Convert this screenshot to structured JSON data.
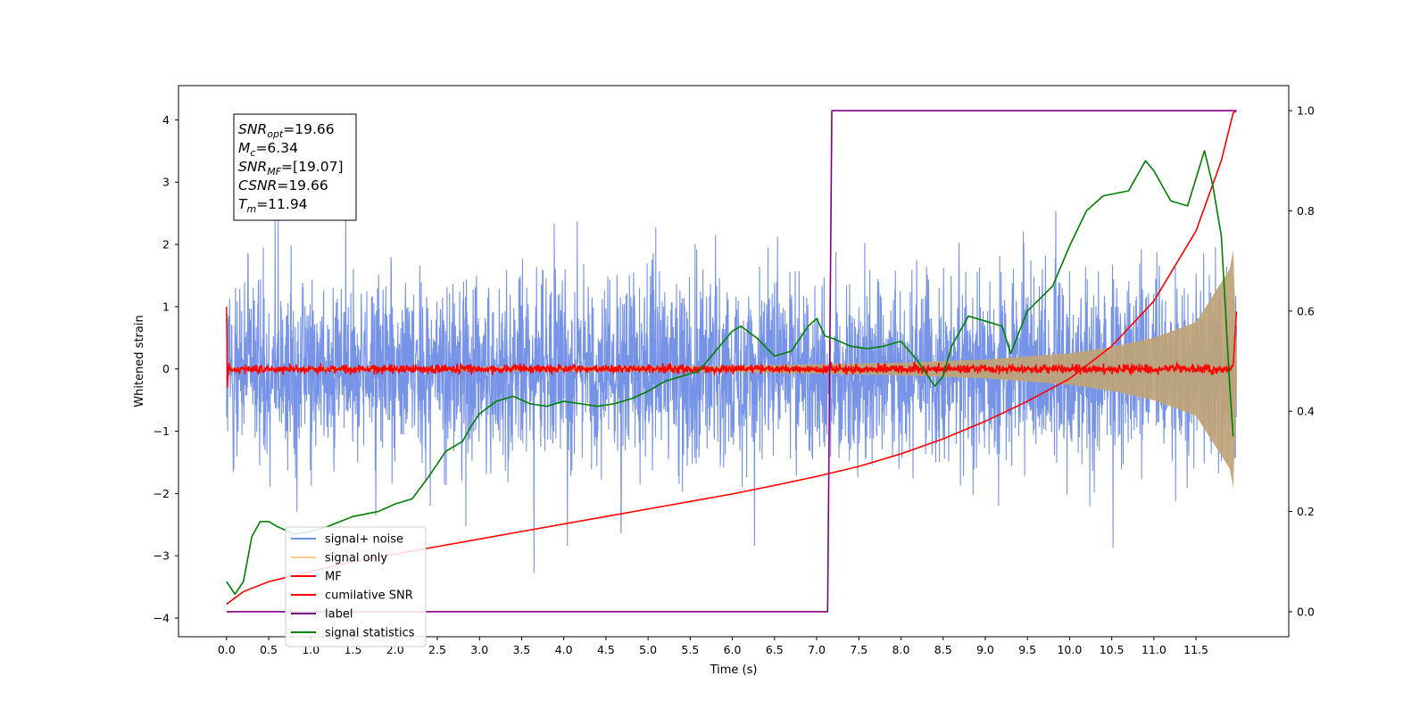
{
  "chart_data": {
    "type": "line",
    "xlabel": "Time (s)",
    "ylabel": "Whitened strain",
    "xlim": [
      -0.57,
      12.6
    ],
    "ylim_left": [
      -4.3,
      4.55
    ],
    "ylim_right": [
      -0.05,
      1.05
    ],
    "x_ticks": [
      0.0,
      0.5,
      1.0,
      1.5,
      2.0,
      2.5,
      3.0,
      3.5,
      4.0,
      4.5,
      5.0,
      5.5,
      6.0,
      6.5,
      7.0,
      7.5,
      8.0,
      8.5,
      9.0,
      9.5,
      10.0,
      10.5,
      11.0,
      11.5
    ],
    "x_tick_labels": [
      "0.0",
      "0.5",
      "1.0",
      "1.5",
      "2.0",
      "2.5",
      "3.0",
      "3.5",
      "4.0",
      "4.5",
      "5.0",
      "5.5",
      "6.0",
      "6.5",
      "7.0",
      "7.5",
      "8.0",
      "8.5",
      "9.0",
      "9.5",
      "10.0",
      "10.5",
      "11.0",
      "11.5"
    ],
    "y_ticks_left": [
      -4,
      -3,
      -2,
      -1,
      0,
      1,
      2,
      3,
      4
    ],
    "y_tick_labels_left": [
      "−4",
      "−3",
      "−2",
      "−1",
      "0",
      "1",
      "2",
      "3",
      "4"
    ],
    "y_ticks_right": [
      0.0,
      0.2,
      0.4,
      0.6,
      0.8,
      1.0
    ],
    "y_tick_labels_right": [
      "0.0",
      "0.2",
      "0.4",
      "0.6",
      "0.8",
      "1.0"
    ],
    "grid": false,
    "legend_placement": "lower-left",
    "annotation": {
      "lines": [
        {
          "sym": "SNR",
          "sub": "opt",
          "val": "=19.66"
        },
        {
          "sym": "M",
          "sub": "c",
          "val": "=6.34"
        },
        {
          "sym": "SNR",
          "sub": "MF",
          "val": "=[19.07]"
        },
        {
          "sym": "CSNR",
          "sub": "",
          "val": "=19.66"
        },
        {
          "sym": "T",
          "sub": "m",
          "val": "=11.94"
        }
      ]
    },
    "series": [
      {
        "name": "signal+ noise",
        "axis": "left",
        "color": "#6f8de6",
        "description_kind": "noise",
        "t_start": 0.0,
        "t_end": 11.98,
        "typical_upper": 1.0,
        "typical_lower": -1.0,
        "max": 4.18,
        "min": -3.28
      },
      {
        "name": "signal only",
        "axis": "left",
        "color": "#f5c66a",
        "description_kind": "chirp",
        "t_start": 0.0,
        "t_end": 11.98,
        "envelope": [
          [
            0.0,
            0.02
          ],
          [
            6.0,
            0.05
          ],
          [
            8.0,
            0.1
          ],
          [
            9.0,
            0.15
          ],
          [
            10.0,
            0.25
          ],
          [
            10.5,
            0.35
          ],
          [
            11.0,
            0.5
          ],
          [
            11.5,
            0.75
          ],
          [
            11.9,
            1.6
          ],
          [
            11.94,
            1.9
          ],
          [
            11.98,
            0.3
          ]
        ]
      },
      {
        "name": "MF",
        "axis": "left",
        "color": "#ff0000",
        "description_kind": "mf",
        "t_start": 0.0,
        "t_end": 11.98,
        "start_values": [
          1.0,
          -0.3
        ],
        "end_value": 0.92
      },
      {
        "name": "cumilative SNR",
        "axis": "right",
        "color": "#ff0000",
        "points": [
          [
            0.0,
            0.015
          ],
          [
            0.2,
            0.04
          ],
          [
            0.5,
            0.06
          ],
          [
            1.0,
            0.08
          ],
          [
            1.5,
            0.1
          ],
          [
            2.0,
            0.115
          ],
          [
            2.5,
            0.13
          ],
          [
            3.0,
            0.145
          ],
          [
            3.5,
            0.16
          ],
          [
            4.0,
            0.175
          ],
          [
            4.5,
            0.19
          ],
          [
            5.0,
            0.205
          ],
          [
            5.5,
            0.22
          ],
          [
            6.0,
            0.235
          ],
          [
            6.5,
            0.252
          ],
          [
            7.0,
            0.27
          ],
          [
            7.5,
            0.29
          ],
          [
            8.0,
            0.315
          ],
          [
            8.5,
            0.345
          ],
          [
            9.0,
            0.38
          ],
          [
            9.5,
            0.42
          ],
          [
            10.0,
            0.465
          ],
          [
            10.5,
            0.53
          ],
          [
            11.0,
            0.62
          ],
          [
            11.5,
            0.76
          ],
          [
            11.8,
            0.9
          ],
          [
            11.94,
            0.995
          ],
          [
            11.98,
            1.0
          ]
        ]
      },
      {
        "name": "label",
        "axis": "right",
        "color": "#800080",
        "points": [
          [
            0.0,
            0.0
          ],
          [
            7.13,
            0.0
          ],
          [
            7.18,
            1.0
          ],
          [
            11.98,
            1.0
          ]
        ]
      },
      {
        "name": "signal statistics",
        "axis": "right",
        "color": "#008000",
        "points": [
          [
            0.0,
            0.06
          ],
          [
            0.1,
            0.035
          ],
          [
            0.2,
            0.06
          ],
          [
            0.3,
            0.15
          ],
          [
            0.4,
            0.18
          ],
          [
            0.5,
            0.18
          ],
          [
            0.6,
            0.17
          ],
          [
            0.8,
            0.155
          ],
          [
            1.0,
            0.16
          ],
          [
            1.2,
            0.17
          ],
          [
            1.5,
            0.19
          ],
          [
            1.8,
            0.2
          ],
          [
            2.0,
            0.215
          ],
          [
            2.2,
            0.225
          ],
          [
            2.4,
            0.27
          ],
          [
            2.6,
            0.32
          ],
          [
            2.8,
            0.34
          ],
          [
            2.9,
            0.37
          ],
          [
            3.0,
            0.395
          ],
          [
            3.2,
            0.42
          ],
          [
            3.4,
            0.43
          ],
          [
            3.6,
            0.415
          ],
          [
            3.8,
            0.41
          ],
          [
            4.0,
            0.42
          ],
          [
            4.2,
            0.415
          ],
          [
            4.4,
            0.41
          ],
          [
            4.6,
            0.415
          ],
          [
            4.8,
            0.425
          ],
          [
            5.0,
            0.44
          ],
          [
            5.2,
            0.46
          ],
          [
            5.4,
            0.47
          ],
          [
            5.6,
            0.48
          ],
          [
            5.8,
            0.52
          ],
          [
            6.0,
            0.56
          ],
          [
            6.1,
            0.57
          ],
          [
            6.3,
            0.545
          ],
          [
            6.5,
            0.51
          ],
          [
            6.7,
            0.52
          ],
          [
            6.9,
            0.57
          ],
          [
            7.0,
            0.585
          ],
          [
            7.1,
            0.55
          ],
          [
            7.2,
            0.545
          ],
          [
            7.4,
            0.53
          ],
          [
            7.6,
            0.525
          ],
          [
            7.8,
            0.53
          ],
          [
            8.0,
            0.54
          ],
          [
            8.2,
            0.5
          ],
          [
            8.4,
            0.45
          ],
          [
            8.5,
            0.47
          ],
          [
            8.6,
            0.53
          ],
          [
            8.8,
            0.59
          ],
          [
            9.0,
            0.58
          ],
          [
            9.2,
            0.57
          ],
          [
            9.3,
            0.515
          ],
          [
            9.5,
            0.6
          ],
          [
            9.8,
            0.65
          ],
          [
            10.0,
            0.73
          ],
          [
            10.2,
            0.8
          ],
          [
            10.4,
            0.83
          ],
          [
            10.7,
            0.84
          ],
          [
            10.9,
            0.9
          ],
          [
            11.0,
            0.88
          ],
          [
            11.2,
            0.82
          ],
          [
            11.4,
            0.81
          ],
          [
            11.6,
            0.92
          ],
          [
            11.7,
            0.85
          ],
          [
            11.8,
            0.75
          ],
          [
            11.9,
            0.45
          ],
          [
            11.94,
            0.35
          ]
        ]
      }
    ]
  }
}
